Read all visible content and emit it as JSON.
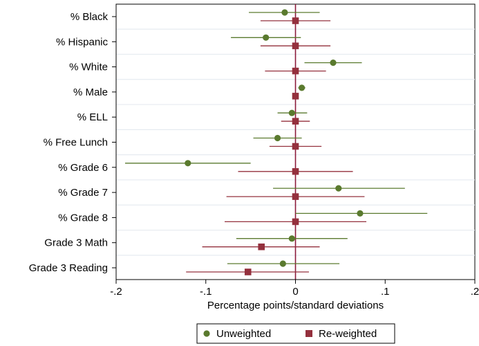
{
  "chart_data": {
    "type": "scatter",
    "subtype": "coefficient-plot-with-confidence-intervals",
    "xlabel": "Percentage points/standard deviations",
    "ylabel": "",
    "xlim": [
      -0.2,
      0.2
    ],
    "xticks": [
      -0.2,
      -0.1,
      0,
      0.1,
      0.2
    ],
    "xtick_labels": [
      "-.2",
      "-.1",
      "0",
      ".1",
      ".2"
    ],
    "reference_line": 0,
    "grid": "horizontal",
    "legend_position": "bottom",
    "categories": [
      "% Black",
      "% Hispanic",
      "% White",
      "% Male",
      "% ELL",
      "% Free Lunch",
      "% Grade 6",
      "% Grade 7",
      "% Grade 8",
      "Grade 3 Math",
      "Grade 3 Reading"
    ],
    "series": [
      {
        "name": "Unweighted",
        "marker": "circle",
        "color": "#5a7a2e",
        "values": [
          -0.012,
          -0.033,
          0.042,
          0.007,
          -0.004,
          -0.02,
          -0.12,
          0.048,
          0.072,
          -0.004,
          -0.014
        ],
        "ci_low": [
          -0.052,
          -0.072,
          0.01,
          0.003,
          -0.02,
          -0.047,
          -0.19,
          -0.025,
          0.0,
          -0.066,
          -0.076
        ],
        "ci_high": [
          0.027,
          0.006,
          0.074,
          0.011,
          0.013,
          0.007,
          -0.05,
          0.122,
          0.147,
          0.058,
          0.049
        ]
      },
      {
        "name": "Re-weighted",
        "marker": "square",
        "color": "#94303d",
        "values": [
          0.0,
          0.0,
          0.0,
          0.0,
          0.0,
          0.0,
          0.0,
          0.0,
          0.0,
          -0.038,
          -0.053
        ],
        "ci_low": [
          -0.039,
          -0.039,
          -0.034,
          -0.003,
          -0.016,
          -0.029,
          -0.064,
          -0.077,
          -0.079,
          -0.104,
          -0.122
        ],
        "ci_high": [
          0.039,
          0.039,
          0.034,
          0.003,
          0.016,
          0.029,
          0.064,
          0.077,
          0.079,
          0.027,
          0.015
        ]
      }
    ]
  }
}
